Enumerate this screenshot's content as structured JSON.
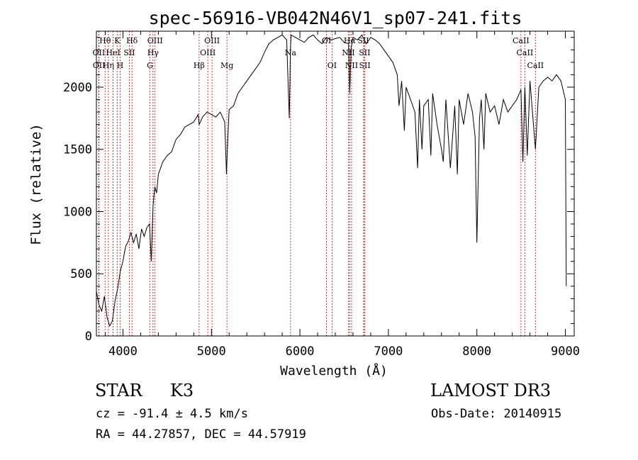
{
  "chart_data": {
    "type": "line",
    "title": "spec-56916-VB042N46V1_sp07-241.fits",
    "xlabel": "Wavelength (Å)",
    "ylabel": "Flux (relative)",
    "xlim": [
      3700,
      9100
    ],
    "ylim": [
      0,
      2450
    ],
    "xticks": [
      4000,
      5000,
      6000,
      7000,
      8000,
      9000
    ],
    "yticks": [
      0,
      500,
      1000,
      1500,
      2000
    ],
    "series": [
      {
        "name": "flux",
        "x": [
          3700,
          3730,
          3760,
          3790,
          3820,
          3850,
          3880,
          3910,
          3940,
          3970,
          4000,
          4030,
          4060,
          4090,
          4120,
          4150,
          4180,
          4210,
          4240,
          4270,
          4300,
          4320,
          4340,
          4360,
          4380,
          4400,
          4450,
          4500,
          4550,
          4600,
          4650,
          4700,
          4750,
          4800,
          4850,
          4861,
          4900,
          4950,
          5000,
          5050,
          5100,
          5150,
          5170,
          5183,
          5200,
          5250,
          5300,
          5350,
          5400,
          5450,
          5500,
          5550,
          5600,
          5650,
          5700,
          5750,
          5800,
          5850,
          5880,
          5893,
          5900,
          5950,
          6000,
          6050,
          6100,
          6150,
          6200,
          6250,
          6300,
          6350,
          6400,
          6450,
          6500,
          6550,
          6563,
          6580,
          6600,
          6650,
          6700,
          6750,
          6800,
          6850,
          6900,
          6950,
          7000,
          7050,
          7100,
          7120,
          7150,
          7180,
          7200,
          7250,
          7300,
          7330,
          7350,
          7380,
          7400,
          7450,
          7480,
          7500,
          7550,
          7600,
          7620,
          7650,
          7700,
          7750,
          7780,
          7800,
          7850,
          7900,
          7950,
          7980,
          8000,
          8030,
          8050,
          8080,
          8100,
          8150,
          8200,
          8250,
          8300,
          8350,
          8400,
          8450,
          8498,
          8520,
          8542,
          8570,
          8600,
          8662,
          8700,
          8750,
          8800,
          8850,
          8900,
          8950,
          9000,
          9010
        ],
        "y": [
          360,
          250,
          200,
          320,
          150,
          80,
          120,
          280,
          380,
          520,
          600,
          720,
          760,
          830,
          750,
          820,
          700,
          860,
          800,
          870,
          900,
          600,
          1050,
          1200,
          1150,
          1300,
          1400,
          1450,
          1480,
          1580,
          1620,
          1680,
          1700,
          1720,
          1780,
          1700,
          1760,
          1800,
          1780,
          1760,
          1800,
          1720,
          1300,
          1550,
          1820,
          1850,
          1950,
          2000,
          2050,
          2100,
          2150,
          2200,
          2280,
          2350,
          2380,
          2400,
          2420,
          2380,
          1750,
          2300,
          2420,
          2400,
          2380,
          2360,
          2400,
          2420,
          2380,
          2350,
          2400,
          2380,
          2390,
          2400,
          2360,
          2350,
          1950,
          2320,
          2400,
          2380,
          2420,
          2350,
          2400,
          2380,
          2350,
          2300,
          2250,
          2200,
          2100,
          1850,
          2050,
          1650,
          2000,
          1900,
          1800,
          1350,
          1900,
          1500,
          1850,
          1900,
          1450,
          1950,
          1700,
          1500,
          1400,
          1900,
          1350,
          1850,
          1300,
          1900,
          1700,
          1950,
          1800,
          1600,
          750,
          1750,
          1900,
          1500,
          1950,
          1800,
          1850,
          1700,
          1900,
          1800,
          1850,
          1900,
          1980,
          1400,
          2000,
          1450,
          2050,
          1500,
          2000,
          2050,
          2080,
          2050,
          2100,
          2050,
          1900,
          400
        ]
      }
    ],
    "lines": [
      {
        "label": "OII",
        "x": 3727,
        "level": 2
      },
      {
        "label": "OII",
        "x": 3729,
        "level": 3
      },
      {
        "label": "Hθ",
        "x": 3798,
        "level": 1
      },
      {
        "label": "Hη",
        "x": 3835,
        "level": 3
      },
      {
        "label": "HeI",
        "x": 3889,
        "level": 2
      },
      {
        "label": "K",
        "x": 3934,
        "level": 1
      },
      {
        "label": "SII",
        "x": 4072,
        "level": 2
      },
      {
        "label": "H",
        "x": 3968,
        "level": 3
      },
      {
        "label": "Hδ",
        "x": 4102,
        "level": 1
      },
      {
        "label": "OIII",
        "x": 4363,
        "level": 1
      },
      {
        "label": "Hγ",
        "x": 4340,
        "level": 2
      },
      {
        "label": "G",
        "x": 4305,
        "level": 3
      },
      {
        "label": "Hβ",
        "x": 4861,
        "level": 3
      },
      {
        "label": "OIII",
        "x": 5007,
        "level": 1
      },
      {
        "label": "OIII",
        "x": 4959,
        "level": 2
      },
      {
        "label": "Mg",
        "x": 5175,
        "level": 3
      },
      {
        "label": "Na",
        "x": 5894,
        "level": 2
      },
      {
        "label": "OI",
        "x": 6300,
        "level": 1
      },
      {
        "label": "OI",
        "x": 6363,
        "level": 3
      },
      {
        "label": "Hα",
        "x": 6563,
        "level": 1
      },
      {
        "label": "NII",
        "x": 6548,
        "level": 2
      },
      {
        "label": "NII",
        "x": 6584,
        "level": 3
      },
      {
        "label": "SII",
        "x": 6716,
        "level": 1
      },
      {
        "label": "SII",
        "x": 6731,
        "level": 2
      },
      {
        "label": "SII",
        "x": 6733,
        "level": 3
      },
      {
        "label": "CaII",
        "x": 8498,
        "level": 1
      },
      {
        "label": "CaII",
        "x": 8542,
        "level": 2
      },
      {
        "label": "CaII",
        "x": 8662,
        "level": 3
      }
    ]
  },
  "info": {
    "class": "STAR",
    "subclass": "K3",
    "survey": "LAMOST DR3",
    "cz": "cz = -91.4 ± 4.5 km/s",
    "obs_date": "Obs-Date: 20140915",
    "radec": "RA =  44.27857, DEC =  44.57919"
  },
  "colors": {
    "line": "#000000",
    "marker": "#cc0000",
    "axis": "#000000"
  }
}
